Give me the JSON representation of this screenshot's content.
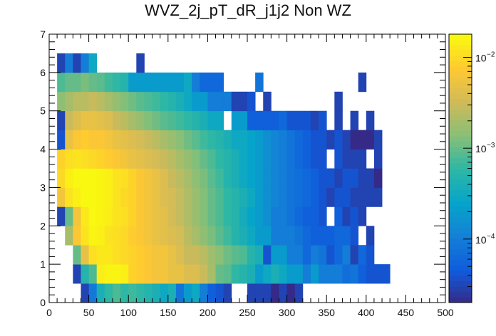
{
  "chart_data": {
    "type": "heatmap",
    "title": "WVZ_2j_pT_dR_j1j2 Non WZ",
    "xlabel": "",
    "ylabel": "",
    "xlim": [
      0,
      500
    ],
    "ylim": [
      0,
      7
    ],
    "x_ticks": [
      0,
      50,
      100,
      150,
      200,
      250,
      300,
      350,
      400,
      450,
      500
    ],
    "y_ticks": [
      0,
      1,
      2,
      3,
      4,
      5,
      6,
      7
    ],
    "x_tick_labels": [
      "0",
      "50",
      "100",
      "150",
      "200",
      "250",
      "300",
      "350",
      "400",
      "450",
      "500"
    ],
    "y_tick_labels": [
      "0",
      "1",
      "2",
      "3",
      "4",
      "5",
      "6",
      "7"
    ],
    "z_log": true,
    "z_range": [
      2e-05,
      0.018
    ],
    "colorbar_ticks": [
      {
        "value": 0.0001,
        "label": "10"
      },
      {
        "value": 0.001,
        "label": "10"
      },
      {
        "value": 0.01,
        "label": "10"
      }
    ],
    "colorbar_exponents": [
      "−4",
      "−3",
      "−2"
    ],
    "x_bin_width": 10,
    "y_bin_width": 0.5,
    "bins": [
      {
        "y": 0.25,
        "x_start": 40,
        "values": [
          3e-05,
          9e-05,
          0.0004,
          0.0006,
          0.0008,
          0.0006,
          0.0007,
          0.0006,
          0.0005,
          0.0004,
          0.0003,
          0.0004,
          8e-05,
          0.0002,
          0.0003,
          0.0001,
          5e-05,
          4e-05,
          3e-05,
          0,
          0,
          3e-05,
          3e-05,
          3e-05,
          2e-05,
          3e-05,
          2e-05,
          3e-05
        ]
      },
      {
        "y": 0.75,
        "x_start": 30,
        "values": [
          3e-05,
          0.0005,
          0.0008,
          0.014,
          0.016,
          0.016,
          0.015,
          0.009,
          0.008,
          0.007,
          0.006,
          0.006,
          0.005,
          0.005,
          0.004,
          0.004,
          0.003,
          0.002,
          0.001,
          0.0009,
          0.0006,
          0.0005,
          0.0004,
          0.0002,
          0.0003,
          0.0004,
          0.0003,
          0.0002,
          0.0002,
          0.0001,
          0.0002,
          0.0001,
          0.0001,
          0.0001,
          7e-05,
          8e-05,
          5e-05,
          4e-05,
          4e-05,
          4e-05
        ]
      },
      {
        "y": 1.25,
        "x_start": 30,
        "values": [
          0.001,
          0.005,
          0.011,
          0.013,
          0.013,
          0.011,
          0.01,
          0.009,
          0.008,
          0.007,
          0.006,
          0.006,
          0.005,
          0.004,
          0.003,
          0.003,
          0.0025,
          0.0018,
          0.0014,
          0.0011,
          0.0009,
          0.0008,
          0.0005,
          0.0004,
          4e-05,
          0.0002,
          0.0002,
          0.0001,
          0.0001,
          6e-05,
          0.0001,
          8e-05,
          4e-05,
          6e-05,
          0.0001,
          3e-05,
          6e-05,
          4e-05
        ]
      },
      {
        "y": 1.75,
        "x_start": 20,
        "values": [
          0.002,
          0.007,
          0.012,
          0.016,
          0.015,
          0.012,
          0.011,
          0.01,
          0.008,
          0.007,
          0.006,
          0.005,
          0.0045,
          0.004,
          0.0035,
          0.0025,
          0.002,
          0.0015,
          0.0012,
          0.0009,
          0.0007,
          0.0005,
          0.0004,
          0.0003,
          0.0002,
          0.0002,
          0.0001,
          0.0001,
          0.0001,
          8e-05,
          6e-05,
          5e-05,
          5e-05,
          5e-05,
          6e-05,
          6e-05,
          4e-05,
          0,
          3e-05
        ]
      },
      {
        "y": 2.25,
        "x_start": 10,
        "values": [
          3e-05,
          0.001,
          0.006,
          0.013,
          0.017,
          0.016,
          0.014,
          0.012,
          0.011,
          0.009,
          0.007,
          0.006,
          0.005,
          0.0045,
          0.0035,
          0.0028,
          0.0022,
          0.0017,
          0.0013,
          0.001,
          0.0008,
          0.0006,
          0.0005,
          0.00035,
          0.00025,
          0.0002,
          0.00015,
          0.0001,
          0.0001,
          8e-05,
          6e-05,
          5e-05,
          5e-05,
          4e-05,
          0,
          5e-05,
          3e-05,
          4e-05,
          3e-05
        ]
      },
      {
        "y": 2.75,
        "x_start": 10,
        "values": [
          0.006,
          0.012,
          0.015,
          0.017,
          0.017,
          0.016,
          0.015,
          0.012,
          0.01,
          0.009,
          0.007,
          0.006,
          0.005,
          0.004,
          0.0035,
          0.0028,
          0.0022,
          0.0017,
          0.0013,
          0.001,
          0.0008,
          0.0006,
          0.0005,
          0.0004,
          0.0003,
          0.0002,
          0.00015,
          0.00012,
          0.0001,
          8e-05,
          7e-05,
          6e-05,
          5e-05,
          4e-05,
          3e-05,
          4e-05,
          4e-05,
          3e-05,
          3e-05,
          3e-05,
          3e-05
        ]
      },
      {
        "y": 3.25,
        "x_start": 10,
        "values": [
          0.01,
          0.015,
          0.017,
          0.017,
          0.017,
          0.016,
          0.015,
          0.012,
          0.011,
          0.009,
          0.007,
          0.006,
          0.005,
          0.004,
          0.003,
          0.0025,
          0.002,
          0.0015,
          0.0012,
          0.0009,
          0.0007,
          0.0005,
          0.0004,
          0.0003,
          0.00025,
          0.0002,
          0.00015,
          0.00012,
          0.0001,
          8e-05,
          7e-05,
          6e-05,
          5e-05,
          4e-05,
          4e-05,
          3e-05,
          4e-05,
          4e-05,
          3e-05,
          3e-05,
          2e-05
        ]
      },
      {
        "y": 3.75,
        "x_start": 10,
        "values": [
          0.009,
          0.011,
          0.012,
          0.011,
          0.01,
          0.009,
          0.008,
          0.007,
          0.006,
          0.005,
          0.0045,
          0.004,
          0.0035,
          0.003,
          0.0025,
          0.002,
          0.0016,
          0.0013,
          0.001,
          0.0008,
          0.0006,
          0.0005,
          0.0004,
          0.0003,
          0.00025,
          0.0002,
          0.00015,
          0.00012,
          0.0001,
          8e-05,
          6e-05,
          5e-05,
          4e-05,
          4e-05,
          0,
          4e-05,
          3e-05,
          3e-05,
          3e-05,
          0,
          3e-05
        ]
      },
      {
        "y": 4.25,
        "x_start": 10,
        "values": [
          4e-05,
          0.005,
          0.007,
          0.008,
          0.007,
          0.007,
          0.006,
          0.005,
          0.0045,
          0.004,
          0.0035,
          0.003,
          0.0025,
          0.002,
          0.0017,
          0.0014,
          0.0011,
          0.0009,
          0.0007,
          0.0006,
          0.0005,
          0.0004,
          0.0003,
          0.0003,
          0.00025,
          0.0002,
          0.00015,
          0.00012,
          0.0001,
          8e-05,
          6e-05,
          5e-05,
          4e-05,
          4e-05,
          3e-05,
          4e-05,
          3e-05,
          2e-05,
          2e-05,
          2e-05,
          3e-05
        ]
      },
      {
        "y": 4.75,
        "x_start": 10,
        "values": [
          3e-05,
          0.003,
          0.004,
          0.005,
          0.005,
          0.0045,
          0.004,
          0.003,
          0.0025,
          0.002,
          0.0016,
          0.0013,
          0.0011,
          0.0009,
          0.0008,
          0.0007,
          0.0006,
          0.0005,
          0.0004,
          0.0003,
          0.0003,
          0,
          0.0002,
          0.0002,
          5e-05,
          5e-05,
          5e-05,
          5e-05,
          6e-05,
          4e-05,
          4e-05,
          4e-05,
          3e-05,
          4e-05,
          0,
          3e-05,
          0,
          3e-05,
          0,
          3e-05,
          0
        ]
      },
      {
        "y": 5.25,
        "x_start": 10,
        "values": [
          0.0015,
          0.002,
          0.0025,
          0.0025,
          0.003,
          0.0025,
          0.002,
          0.0016,
          0.0013,
          0.0011,
          0.0009,
          0.0008,
          0.0007,
          0.0006,
          0.0005,
          0.0004,
          0.0003,
          0.0002,
          0.0002,
          0.0001,
          0.0001,
          0.0001,
          3e-05,
          3e-05,
          4e-05,
          0,
          3e-05,
          0,
          0,
          0,
          0,
          0,
          0,
          0,
          0,
          3e-05
        ]
      },
      {
        "y": 5.75,
        "x_start": 10,
        "values": [
          0.0008,
          0.001,
          0.001,
          0.0012,
          0.001,
          0.0009,
          0.0007,
          0.0006,
          0.0005,
          0.0002,
          0.0002,
          0.0002,
          0.0002,
          0.0002,
          0.0002,
          0.0002,
          0.0003,
          0.0001,
          6e-05,
          6e-05,
          6e-05,
          0,
          0,
          0,
          0,
          8e-05,
          0,
          0,
          0,
          0,
          0,
          0,
          0,
          0,
          0,
          0,
          0,
          0,
          3e-05
        ]
      },
      {
        "y": 6.25,
        "x_start": 10,
        "values": [
          3e-05,
          0.0001,
          3e-05,
          0.0001,
          0.0003,
          0,
          0,
          0,
          0,
          0,
          3e-05
        ]
      }
    ]
  }
}
